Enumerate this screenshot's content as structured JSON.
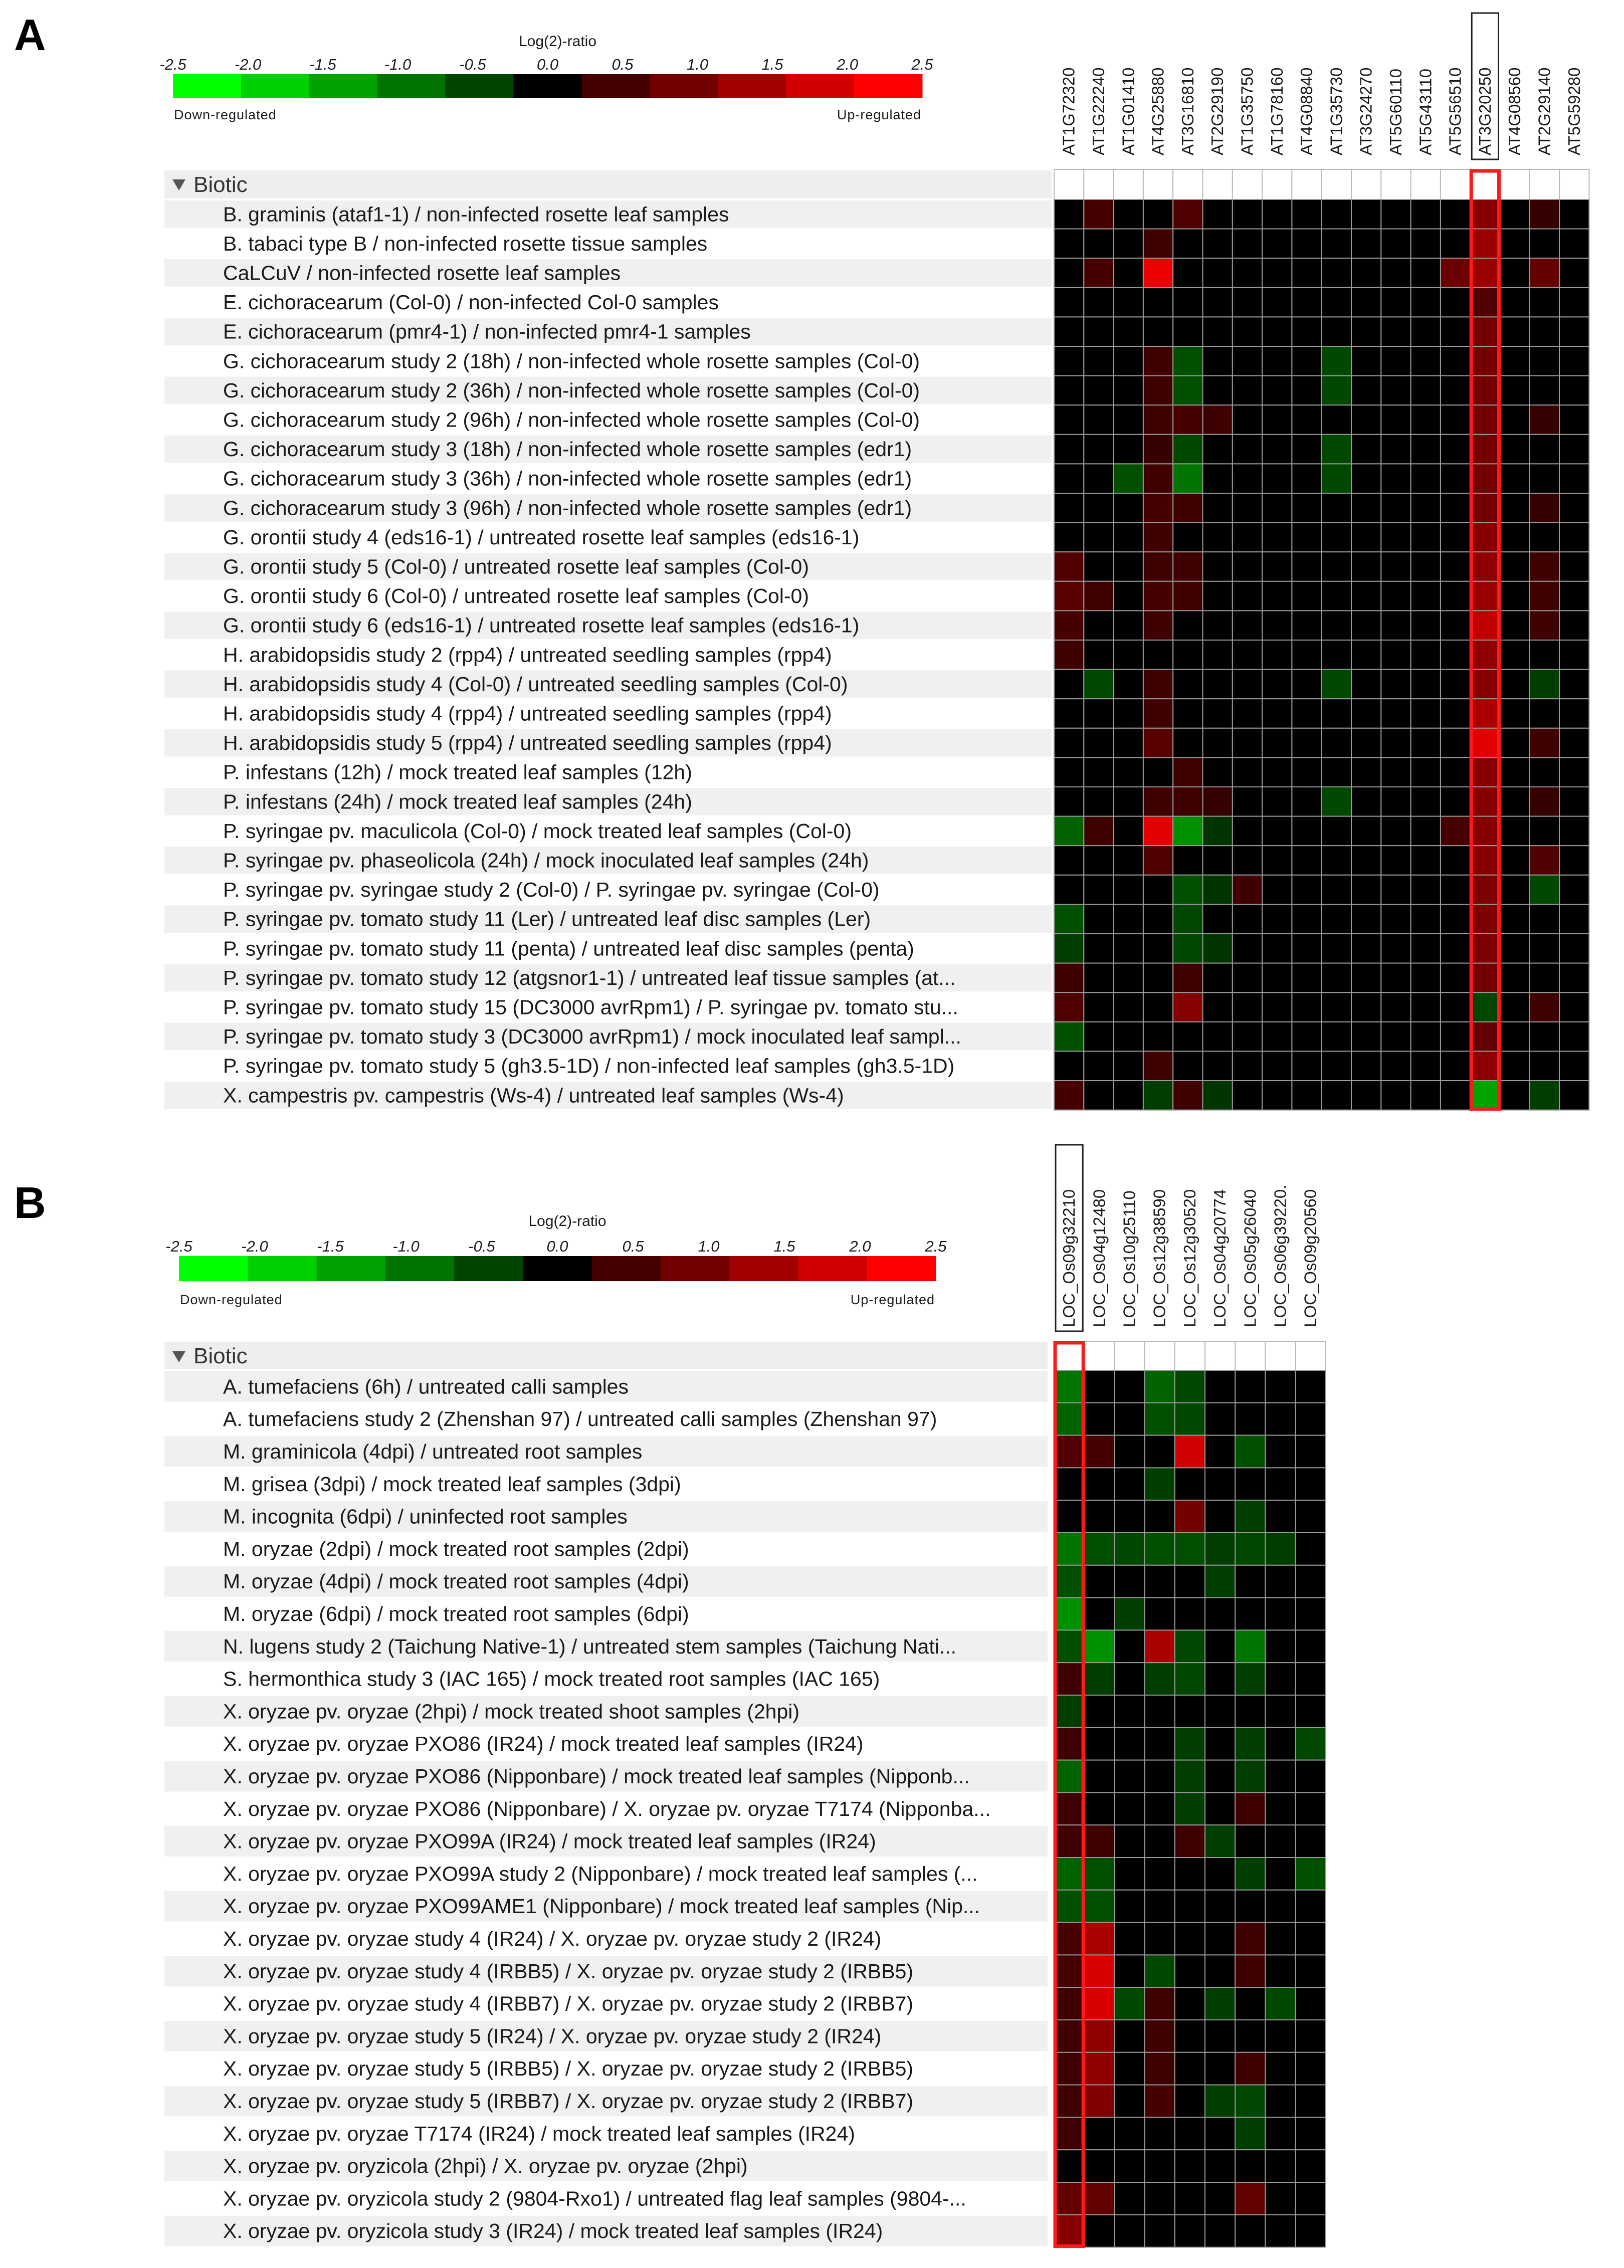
{
  "chart_data": [
    {
      "type": "heatmap",
      "panel": "A",
      "section": "Biotic",
      "scale": {
        "title": "Log(2)-ratio",
        "ticks": [
          "-2.5",
          "-2.0",
          "-1.5",
          "-1.0",
          "-0.5",
          "0.0",
          "0.5",
          "1.0",
          "1.5",
          "2.0",
          "2.5"
        ],
        "low_label": "Down-regulated",
        "high_label": "Up-regulated",
        "range": [
          -2.5,
          2.5
        ],
        "colors": [
          "#00ff00",
          "#00d100",
          "#00a200",
          "#007300",
          "#004400",
          "#000000",
          "#440000",
          "#730000",
          "#a20000",
          "#d10000",
          "#ff0000"
        ]
      },
      "columns": [
        "AT1G72320",
        "AT1G22240",
        "AT1G01410",
        "AT4G25880",
        "AT3G16810",
        "AT2G29190",
        "AT1G35750",
        "AT1G78160",
        "AT4G08840",
        "AT1G35730",
        "AT3G24270",
        "AT5G60110",
        "AT5G43110",
        "AT5G56510",
        "AT3G20250",
        "AT4G08560",
        "AT2G29140",
        "AT5G59280"
      ],
      "highlight_column": "AT3G20250",
      "rows": [
        "B. graminis (ataf1-1) / non-infected rosette leaf samples",
        "B. tabaci type B / non-infected rosette tissue samples",
        "CaLCuV / non-infected rosette leaf samples",
        "E. cichoracearum (Col-0) / non-infected Col-0 samples",
        "E. cichoracearum (pmr4-1) / non-infected pmr4-1 samples",
        "G. cichoracearum study 2 (18h) / non-infected whole rosette samples (Col-0)",
        "G. cichoracearum study 2 (36h) / non-infected whole rosette samples (Col-0)",
        "G. cichoracearum study 2 (96h) / non-infected whole rosette samples (Col-0)",
        "G. cichoracearum study 3 (18h) / non-infected whole rosette samples (edr1)",
        "G. cichoracearum study 3 (36h) / non-infected whole rosette samples (edr1)",
        "G. cichoracearum study 3 (96h) / non-infected whole rosette samples (edr1)",
        "G. orontii study 4 (eds16-1) / untreated rosette leaf samples (eds16-1)",
        "G. orontii study 5 (Col-0) / untreated rosette leaf samples (Col-0)",
        "G. orontii study 6 (Col-0) / untreated rosette leaf samples (Col-0)",
        "G. orontii study 6 (eds16-1) / untreated rosette leaf samples (eds16-1)",
        "H. arabidopsidis study 2 (rpp4) / untreated seedling samples (rpp4)",
        "H. arabidopsidis study 4 (Col-0) / untreated seedling samples (Col-0)",
        "H. arabidopsidis study 4 (rpp4) / untreated seedling samples (rpp4)",
        "H. arabidopsidis study 5 (rpp4) / untreated seedling samples (rpp4)",
        "P. infestans (12h) / mock treated leaf samples (12h)",
        "P. infestans (24h) / mock treated leaf samples (24h)",
        "P. syringae pv. maculicola (Col-0) / mock treated leaf samples (Col-0)",
        "P. syringae pv. phaseolicola (24h) / mock inoculated leaf samples (24h)",
        "P. syringae pv. syringae study 2 (Col-0) / P. syringae pv. syringae (Col-0)",
        "P. syringae pv. tomato study 11 (Ler) / untreated leaf disc samples (Ler)",
        "P. syringae pv. tomato study 11 (penta) / untreated leaf disc samples (penta)",
        "P. syringae pv. tomato study 12 (atgsnor1-1) / untreated leaf tissue samples (at...",
        "P. syringae pv. tomato study 15 (DC3000 avrRpm1) / P. syringae pv. tomato stu...",
        "P. syringae pv. tomato study 3 (DC3000 avrRpm1) / mock inoculated leaf sampl...",
        "P. syringae pv. tomato study 5 (gh3.5-1D) / non-infected leaf samples (gh3.5-1D)",
        "X. campestris pv. campestris (Ws-4) / untreated leaf samples (Ws-4)"
      ],
      "values": [
        [
          0,
          0.5,
          0,
          0,
          0.6,
          0,
          0,
          0,
          0,
          0,
          0,
          0,
          0,
          0,
          1.2,
          0,
          0.3,
          0
        ],
        [
          0,
          0,
          0,
          0.4,
          0,
          0,
          0,
          0,
          0,
          0,
          0,
          0,
          0,
          0,
          1.4,
          0,
          0,
          0
        ],
        [
          0,
          0.5,
          0,
          2.3,
          0,
          0,
          0,
          0,
          0,
          0,
          0,
          0,
          0,
          0.9,
          1.4,
          0,
          0.8,
          0
        ],
        [
          0,
          0,
          0,
          0,
          0,
          0,
          0,
          0,
          0,
          0,
          0,
          0,
          0,
          0,
          0.6,
          0,
          0,
          0
        ],
        [
          0,
          0,
          0,
          0,
          0,
          0,
          0,
          0,
          0,
          0,
          0,
          0,
          0,
          0,
          1.0,
          0,
          0,
          0
        ],
        [
          0,
          0,
          0,
          0.4,
          -0.6,
          0,
          0,
          0,
          0,
          -0.5,
          0,
          0,
          0,
          0,
          1.0,
          0,
          0,
          0
        ],
        [
          0,
          0,
          0,
          0.4,
          -0.6,
          0,
          0,
          0,
          0,
          -0.5,
          0,
          0,
          0,
          0,
          1.0,
          0,
          0,
          0
        ],
        [
          0,
          0,
          0,
          0.4,
          0.5,
          0.4,
          0,
          0,
          0,
          0,
          0,
          0,
          0,
          0,
          1.0,
          0,
          0.3,
          0
        ],
        [
          0,
          0,
          0,
          0.3,
          -0.5,
          0,
          0,
          0,
          0,
          -0.5,
          0,
          0,
          0,
          0,
          1.0,
          0,
          0,
          0
        ],
        [
          0,
          0,
          -0.6,
          0.4,
          -1.0,
          0,
          0,
          0,
          0,
          -0.5,
          0,
          0,
          0,
          0,
          1.0,
          0,
          0,
          0
        ],
        [
          0,
          0,
          0,
          0.5,
          0.4,
          0,
          0,
          0,
          0,
          0,
          0,
          0,
          0,
          0,
          1.0,
          0,
          0.3,
          0
        ],
        [
          0,
          0,
          0,
          0.4,
          0,
          0,
          0,
          0,
          0,
          0,
          0,
          0,
          0,
          0,
          1.2,
          0,
          0,
          0
        ],
        [
          0.6,
          0,
          0,
          0.4,
          0.4,
          0,
          0,
          0,
          0,
          0,
          0,
          0,
          0,
          0,
          1.3,
          0,
          0.4,
          0
        ],
        [
          0.7,
          0.4,
          0,
          0.5,
          0.4,
          0,
          0,
          0,
          0,
          0,
          0,
          0,
          0,
          0,
          1.4,
          0,
          0.4,
          0
        ],
        [
          0.5,
          0,
          0,
          0.4,
          0,
          0,
          0,
          0,
          0,
          0,
          0,
          0,
          0,
          0,
          1.8,
          0,
          0.4,
          0
        ],
        [
          0.4,
          0,
          0,
          0,
          0,
          0,
          0,
          0,
          0,
          0,
          0,
          0,
          0,
          0,
          1.3,
          0,
          0,
          0
        ],
        [
          0,
          -0.5,
          0,
          0.4,
          0,
          0,
          0,
          0,
          0,
          -0.5,
          0,
          0,
          0,
          0,
          1.2,
          0,
          -0.4,
          0
        ],
        [
          0,
          0,
          0,
          0.4,
          0,
          0,
          0,
          0,
          0,
          0,
          0,
          0,
          0,
          0,
          1.6,
          0,
          0,
          0
        ],
        [
          0,
          0,
          0,
          0.7,
          0,
          0,
          0,
          0,
          0,
          0,
          0,
          0,
          0,
          0,
          2.2,
          0,
          0.4,
          0
        ],
        [
          0,
          0,
          0,
          0,
          0.4,
          0,
          0,
          0,
          0,
          0,
          0,
          0,
          0,
          0,
          1.2,
          0,
          0,
          0
        ],
        [
          0,
          0,
          0,
          0.4,
          0.4,
          0.3,
          0,
          0,
          0,
          -0.5,
          0,
          0,
          0,
          0,
          1.2,
          0,
          0.3,
          0
        ],
        [
          -0.8,
          0.4,
          0,
          2.2,
          -1.3,
          -0.3,
          0,
          0,
          0,
          0,
          0,
          0,
          0,
          0.5,
          1.2,
          0,
          0,
          0
        ],
        [
          0,
          0,
          0,
          0.6,
          0,
          0,
          0,
          0,
          0,
          0,
          0,
          0,
          0,
          0,
          1.2,
          0,
          0.6,
          0
        ],
        [
          0,
          0,
          0,
          0,
          -0.6,
          -0.3,
          0.4,
          0,
          0,
          0,
          0,
          0,
          0,
          0,
          1.1,
          0,
          -0.5,
          0
        ],
        [
          -0.6,
          0,
          0,
          0,
          -0.5,
          0,
          0,
          0,
          0,
          0,
          0,
          0,
          0,
          0,
          1.1,
          0,
          0,
          0
        ],
        [
          -0.4,
          0,
          0,
          0,
          -0.5,
          -0.3,
          0,
          0,
          0,
          0,
          0,
          0,
          0,
          0,
          1.1,
          0,
          0,
          0
        ],
        [
          0.4,
          0,
          0,
          0,
          0.4,
          0,
          0,
          0,
          0,
          0,
          0,
          0,
          0,
          0,
          1.0,
          0,
          0,
          0
        ],
        [
          0.6,
          0,
          0,
          0,
          1.2,
          0,
          0,
          0,
          0,
          0,
          0,
          0,
          0,
          0,
          -0.5,
          0,
          0.4,
          0
        ],
        [
          -0.6,
          0,
          0,
          0,
          0,
          0,
          0,
          0,
          0,
          0,
          0,
          0,
          0,
          0,
          0.8,
          0,
          0,
          0
        ],
        [
          0,
          0,
          0,
          0.4,
          0,
          0,
          0,
          0,
          0,
          0,
          0,
          0,
          0,
          0,
          1.3,
          0,
          0,
          0
        ],
        [
          0.5,
          0,
          0,
          -0.4,
          0.4,
          -0.3,
          0,
          0,
          0,
          0,
          0,
          0,
          0,
          0,
          -1.5,
          0,
          -0.4,
          0
        ]
      ]
    },
    {
      "type": "heatmap",
      "panel": "B",
      "section": "Biotic",
      "scale": {
        "title": "Log(2)-ratio",
        "ticks": [
          "-2.5",
          "-2.0",
          "-1.5",
          "-1.0",
          "-0.5",
          "0.0",
          "0.5",
          "1.0",
          "1.5",
          "2.0",
          "2.5"
        ],
        "low_label": "Down-regulated",
        "high_label": "Up-regulated",
        "range": [
          -2.5,
          2.5
        ],
        "colors": [
          "#00ff00",
          "#00d100",
          "#00a200",
          "#007300",
          "#004400",
          "#000000",
          "#440000",
          "#730000",
          "#a20000",
          "#d10000",
          "#ff0000"
        ]
      },
      "columns": [
        "LOC_Os09g32210",
        "LOC_Os04g12480",
        "LOC_Os10g25110",
        "LOC_Os12g38590",
        "LOC_Os12g30520",
        "LOC_Os04g20774",
        "LOC_Os05g26040",
        "LOC_Os06g39220.",
        "LOC_Os09g20560"
      ],
      "highlight_column": "LOC_Os09g32210",
      "rows": [
        "A. tumefaciens (6h) / untreated calli samples",
        "A. tumefaciens study 2 (Zhenshan 97) / untreated calli samples (Zhenshan 97)",
        "M. graminicola (4dpi) / untreated root samples",
        "M. grisea (3dpi) / mock treated leaf samples (3dpi)",
        "M. incognita (6dpi) / uninfected root samples",
        "M. oryzae (2dpi) / mock treated root samples (2dpi)",
        "M. oryzae (4dpi) / mock treated root samples (4dpi)",
        "M. oryzae (6dpi) / mock treated root samples (6dpi)",
        "N. lugens study 2 (Taichung Native-1) / untreated stem samples (Taichung Nati...",
        "S. hermonthica study 3 (IAC 165) / mock treated root samples (IAC 165)",
        "X. oryzae pv. oryzae (2hpi) / mock treated shoot samples (2hpi)",
        "X. oryzae pv. oryzae PXO86 (IR24) / mock treated leaf samples (IR24)",
        "X. oryzae pv. oryzae PXO86 (Nipponbare) / mock treated leaf samples (Nipponb...",
        "X. oryzae pv. oryzae PXO86 (Nipponbare) / X. oryzae pv. oryzae T7174 (Nipponba...",
        "X. oryzae pv. oryzae PXO99A (IR24) / mock treated leaf samples (IR24)",
        "X. oryzae pv. oryzae PXO99A study 2 (Nipponbare) / mock treated leaf samples (...",
        "X. oryzae pv. oryzae PXO99AME1 (Nipponbare) / mock treated leaf samples (Nip...",
        "X. oryzae pv. oryzae study 4 (IR24) / X. oryzae pv. oryzae study 2 (IR24)",
        "X. oryzae pv. oryzae study 4 (IRBB5) / X. oryzae pv. oryzae study 2 (IRBB5)",
        "X. oryzae pv. oryzae study 4 (IRBB7) / X. oryzae pv. oryzae study 2 (IRBB7)",
        "X. oryzae pv. oryzae study 5 (IR24) / X. oryzae pv. oryzae study 2 (IR24)",
        "X. oryzae pv. oryzae study 5 (IRBB5) / X. oryzae pv. oryzae study 2 (IRBB5)",
        "X. oryzae pv. oryzae study 5 (IRBB7) / X. oryzae pv. oryzae study 2 (IRBB7)",
        "X. oryzae pv. oryzae T7174 (IR24) / mock treated leaf samples (IR24)",
        "X. oryzae pv. oryzicola (2hpi) / X. oryzae pv. oryzae (2hpi)",
        "X. oryzae pv. oryzicola study 2 (9804-Rxo1) / untreated flag leaf samples (9804-...",
        "X. oryzae pv. oryzicola study 3 (IR24) / mock treated leaf samples (IR24)"
      ],
      "values": [
        [
          -1.0,
          0,
          0,
          -0.8,
          -0.5,
          0,
          0,
          0,
          0
        ],
        [
          -0.8,
          0,
          0,
          -0.6,
          -0.5,
          0,
          0,
          0,
          0
        ],
        [
          0.6,
          0.5,
          0,
          0,
          2.0,
          0,
          -0.6,
          0,
          0
        ],
        [
          0,
          0,
          0,
          -0.4,
          0,
          0,
          0,
          0,
          0
        ],
        [
          0,
          0,
          0,
          0,
          1.0,
          0,
          -0.4,
          0,
          0
        ],
        [
          -1.0,
          -0.6,
          -0.5,
          -0.6,
          -0.6,
          -0.4,
          -0.5,
          -0.4,
          0
        ],
        [
          -0.6,
          0,
          0,
          0,
          0,
          -0.4,
          0,
          0,
          0
        ],
        [
          -1.3,
          0,
          -0.4,
          0,
          0,
          0,
          0,
          0,
          0
        ],
        [
          -0.6,
          -1.3,
          0,
          1.6,
          -0.5,
          0,
          -1.0,
          0,
          0
        ],
        [
          0.4,
          -0.4,
          0,
          -0.4,
          -0.5,
          0,
          -0.4,
          0,
          0
        ],
        [
          -0.4,
          0,
          0,
          0,
          0,
          0,
          0,
          0,
          0
        ],
        [
          0.4,
          0,
          0,
          0,
          -0.4,
          0,
          -0.4,
          0,
          -0.5
        ],
        [
          -0.8,
          0,
          0,
          0,
          -0.4,
          0,
          -0.4,
          0,
          0
        ],
        [
          0.4,
          0,
          0,
          0,
          -0.4,
          0,
          0.4,
          0,
          0
        ],
        [
          0.4,
          0.4,
          0,
          0,
          0.4,
          -0.4,
          0,
          0,
          0
        ],
        [
          -0.8,
          -0.6,
          0,
          0,
          0,
          0,
          -0.4,
          0,
          -0.6
        ],
        [
          -0.6,
          -0.6,
          0,
          0,
          0,
          0,
          0,
          0,
          0
        ],
        [
          0.5,
          1.6,
          0,
          0,
          0,
          0,
          0.4,
          0,
          0
        ],
        [
          0.5,
          2.1,
          0,
          -0.5,
          0,
          0,
          0.4,
          0,
          0
        ],
        [
          0.4,
          2.1,
          -0.5,
          0.4,
          0,
          -0.4,
          0,
          -0.5,
          0
        ],
        [
          0.4,
          1.3,
          0,
          0.4,
          0,
          0,
          0,
          0,
          0
        ],
        [
          0.4,
          1.3,
          0,
          0.4,
          0,
          0,
          0.4,
          0,
          0
        ],
        [
          0.4,
          1.1,
          0,
          0.5,
          0,
          -0.4,
          -0.5,
          0,
          0
        ],
        [
          0.4,
          0,
          0,
          0,
          0,
          0,
          -0.4,
          0,
          0
        ],
        [
          0,
          0,
          0,
          0,
          0,
          0,
          0,
          0,
          0
        ],
        [
          0.8,
          0.8,
          0,
          0,
          0,
          0,
          0.8,
          0,
          0
        ],
        [
          1.2,
          0,
          0,
          0,
          0,
          0,
          0,
          0,
          0
        ]
      ]
    }
  ]
}
